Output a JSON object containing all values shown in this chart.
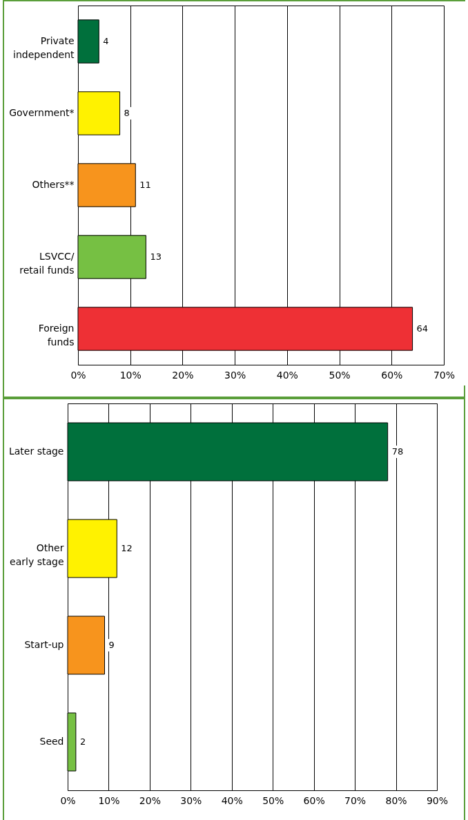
{
  "chart_data": [
    {
      "type": "bar",
      "orientation": "horizontal",
      "categories": [
        "Private\nindependent",
        "Government*",
        "Others**",
        "LSVCC/\nretail funds",
        "Foreign\nfunds"
      ],
      "values": [
        4,
        8,
        11,
        13,
        64
      ],
      "colors": [
        "#00703c",
        "#fff200",
        "#f7941d",
        "#76c043",
        "#ee3035"
      ],
      "xlim": [
        0,
        70
      ],
      "xticks": [
        {
          "value": 0,
          "label": "0%"
        },
        {
          "value": 10,
          "label": "10%"
        },
        {
          "value": 20,
          "label": "20%"
        },
        {
          "value": 30,
          "label": "30%"
        },
        {
          "value": 40,
          "label": "40%"
        },
        {
          "value": 50,
          "label": "50%"
        },
        {
          "value": 60,
          "label": "60%"
        },
        {
          "value": 70,
          "label": "70%"
        }
      ],
      "grid": "x",
      "data_labels": true
    },
    {
      "type": "bar",
      "orientation": "horizontal",
      "categories": [
        "Later stage",
        "Other\nearly stage",
        "Start-up",
        "Seed"
      ],
      "values": [
        78,
        12,
        9,
        2
      ],
      "colors": [
        "#00703c",
        "#fff200",
        "#f7941d",
        "#76c043"
      ],
      "xlim": [
        0,
        90
      ],
      "xticks": [
        {
          "value": 0,
          "label": "0%"
        },
        {
          "value": 10,
          "label": "10%"
        },
        {
          "value": 20,
          "label": "20%"
        },
        {
          "value": 30,
          "label": "30%"
        },
        {
          "value": 40,
          "label": "40%"
        },
        {
          "value": 50,
          "label": "50%"
        },
        {
          "value": 60,
          "label": "60%"
        },
        {
          "value": 70,
          "label": "70%"
        },
        {
          "value": 80,
          "label": "80%"
        },
        {
          "value": 90,
          "label": "90%"
        }
      ],
      "grid": "x",
      "data_labels": true
    }
  ]
}
